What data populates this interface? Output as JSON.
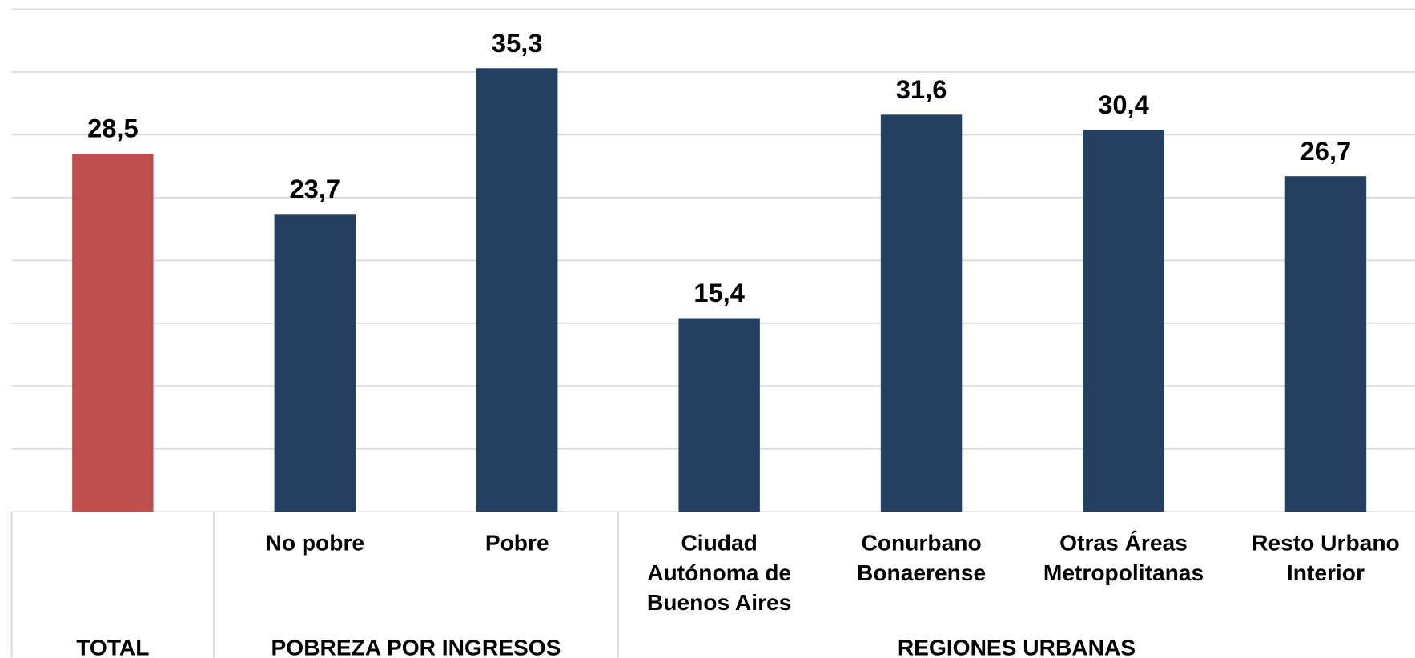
{
  "chart_data": {
    "type": "bar",
    "categories": [
      null,
      "No pobre",
      "Pobre",
      "Ciudad Autónoma de Buenos Aires",
      "Conurbano Bonaerense",
      "Otras Áreas Metropolitanas",
      "Resto Urbano Interior"
    ],
    "values": [
      28.5,
      23.7,
      35.3,
      15.4,
      31.6,
      30.4,
      26.7
    ],
    "value_labels": [
      "28,5",
      "23,7",
      "35,3",
      "15,4",
      "31,6",
      "30,4",
      "26,7"
    ],
    "colors": [
      "#c0504d",
      "#243f60",
      "#243f60",
      "#243f60",
      "#243f60",
      "#243f60",
      "#243f60"
    ],
    "groups": [
      {
        "name": "TOTAL",
        "span": 1
      },
      {
        "name": "POBREZA POR INGRESOS",
        "span": 2
      },
      {
        "name": "REGIONES URBANAS",
        "span": 4
      }
    ],
    "ylim": [
      0,
      40
    ],
    "yticks": [
      0,
      5,
      10,
      15,
      20,
      25,
      30,
      35,
      40
    ],
    "grid": true
  }
}
